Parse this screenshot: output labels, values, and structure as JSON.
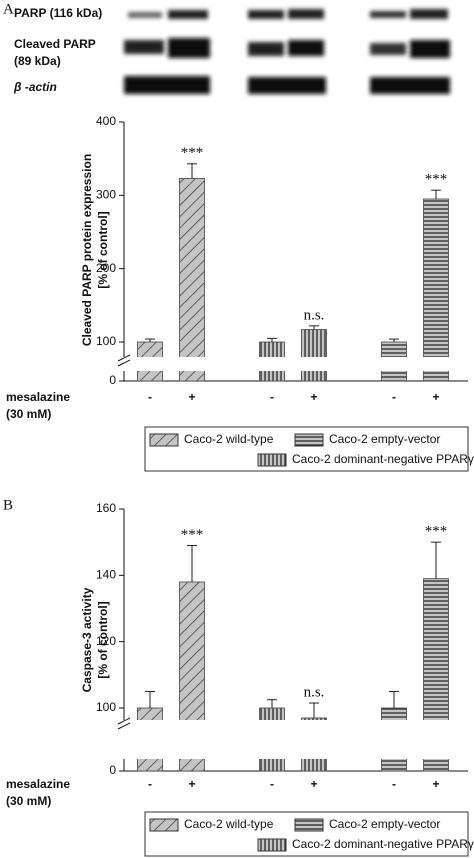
{
  "panels": [
    "A",
    "B"
  ],
  "blot_labels": [
    "PARP (116 kDa)",
    "Cleaved PARP",
    "(89 kDa)",
    "β -actin"
  ],
  "chart_data": [
    {
      "type": "bar",
      "y_label": [
        "Cleaved PARP protein expression",
        "[% of control]"
      ],
      "x_label": [
        "mesalazine",
        "(30 mM)"
      ],
      "categories": [
        "-",
        "+",
        "-",
        "+",
        "-",
        "+"
      ],
      "series": [
        {
          "name": "Caco-2 wild-type",
          "color": "#c4c4c4",
          "pattern": "diagonal",
          "values": [
            100,
            323,
            null,
            null,
            null,
            null
          ],
          "errors": [
            4,
            20,
            null,
            null,
            null,
            null
          ]
        },
        {
          "name": "Caco-2 empty-vector",
          "color": "#c4c4c4",
          "pattern": "horizontal",
          "values": [
            null,
            null,
            null,
            null,
            100,
            295
          ],
          "errors": [
            null,
            null,
            null,
            null,
            4,
            12
          ]
        },
        {
          "name": "Caco-2 dominant-negative PPARγ",
          "color": "#c4c4c4",
          "pattern": "vertical",
          "values": [
            null,
            null,
            100,
            117,
            null,
            null
          ],
          "errors": [
            null,
            null,
            5,
            5,
            null,
            null
          ]
        }
      ],
      "annotations": [
        null,
        "***",
        null,
        "n.s.",
        null,
        "***"
      ],
      "ylim": [
        0,
        400
      ],
      "yticks": [
        0,
        100,
        200,
        300,
        400
      ],
      "axis_break": true
    },
    {
      "type": "bar",
      "y_label": [
        "Caspase-3 activity",
        "[% of control]"
      ],
      "x_label": [
        "mesalazine",
        "(30 mM)"
      ],
      "categories": [
        "-",
        "+",
        "-",
        "+",
        "-",
        "+"
      ],
      "series": [
        {
          "name": "Caco-2 wild-type",
          "color": "#c4c4c4",
          "pattern": "diagonal",
          "values": [
            100,
            138,
            null,
            null,
            null,
            null
          ],
          "errors": [
            5,
            11,
            null,
            null,
            null,
            null
          ]
        },
        {
          "name": "Caco-2 empty-vector",
          "color": "#c4c4c4",
          "pattern": "horizontal",
          "values": [
            null,
            null,
            null,
            null,
            100,
            139
          ],
          "errors": [
            null,
            null,
            null,
            null,
            5,
            11
          ]
        },
        {
          "name": "Caco-2 dominant-negative PPARγ",
          "color": "#c4c4c4",
          "pattern": "vertical",
          "values": [
            null,
            null,
            100,
            97,
            null,
            null
          ],
          "errors": [
            null,
            null,
            2.5,
            4.5,
            null,
            null
          ]
        }
      ],
      "annotations": [
        null,
        "***",
        null,
        "n.s.",
        null,
        "***"
      ],
      "ylim": [
        0,
        160
      ],
      "yticks": [
        0,
        100,
        120,
        140,
        160
      ],
      "axis_break": true
    }
  ]
}
